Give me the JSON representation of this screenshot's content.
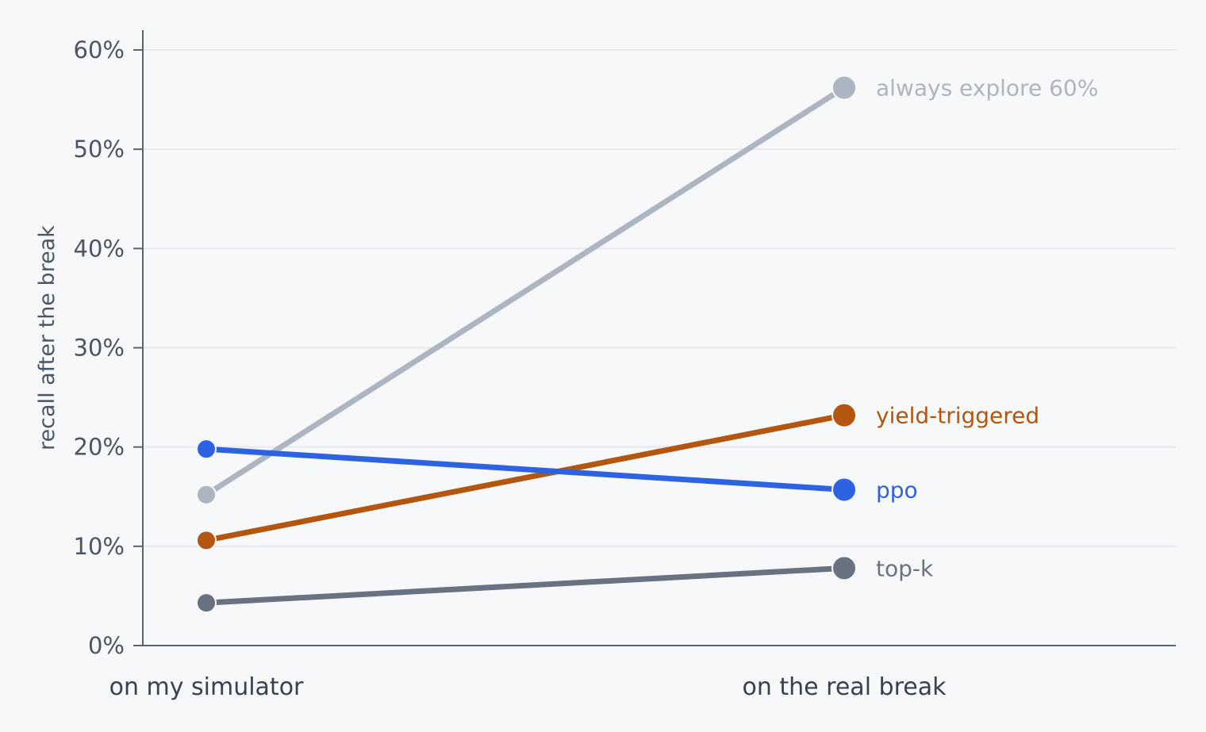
{
  "chart_data": {
    "type": "line",
    "title": "",
    "xlabel": "",
    "ylabel": "recall after the break",
    "categories": [
      "on my simulator",
      "on the real break"
    ],
    "ylim": [
      0,
      60
    ],
    "yticks": [
      0,
      10,
      20,
      30,
      40,
      50,
      60
    ],
    "ytick_labels": [
      "0%",
      "10%",
      "20%",
      "30%",
      "40%",
      "50%",
      "60%"
    ],
    "grid": true,
    "legend": "direct labels at right end of each line",
    "series": [
      {
        "name": "always explore 60%",
        "values": [
          15.2,
          56.2
        ],
        "color": "#adb5c2"
      },
      {
        "name": "yield-triggered",
        "values": [
          10.6,
          23.2
        ],
        "color": "#b4560f"
      },
      {
        "name": "ppo",
        "values": [
          19.8,
          15.7
        ],
        "color": "#2d63e2"
      },
      {
        "name": "top-k",
        "values": [
          4.3,
          7.8
        ],
        "color": "#697280"
      }
    ]
  }
}
